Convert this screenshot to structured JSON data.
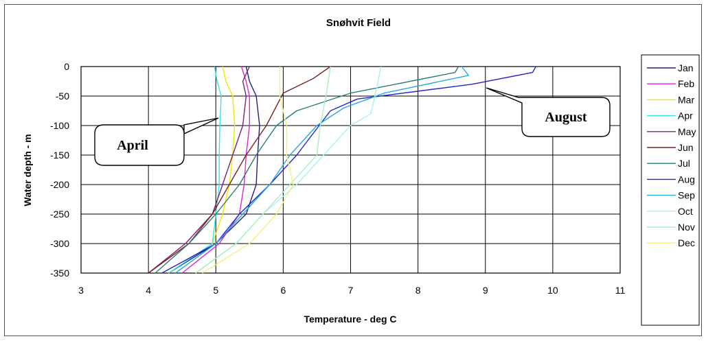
{
  "chart_data": {
    "type": "line",
    "title": "Snøhvit Field",
    "xlabel": "Temperature - deg C",
    "ylabel": "Water depth - m",
    "xlim": [
      3,
      11
    ],
    "ylim": [
      -350,
      0
    ],
    "x_ticks": [
      "3",
      "4",
      "5",
      "6",
      "7",
      "8",
      "9",
      "10",
      "11"
    ],
    "y_ticks": [
      "0",
      "-50",
      "-100",
      "-150",
      "-200",
      "-250",
      "-300",
      "-350"
    ],
    "grid": true,
    "legend_position": "right",
    "series": [
      {
        "name": "Jan",
        "color": "#1f1f7a",
        "points": [
          [
            5.45,
            0
          ],
          [
            5.5,
            -25
          ],
          [
            5.6,
            -50
          ],
          [
            5.65,
            -100
          ],
          [
            5.62,
            -150
          ],
          [
            5.6,
            -200
          ],
          [
            5.45,
            -250
          ],
          [
            5.0,
            -300
          ],
          [
            4.3,
            -350
          ]
        ]
      },
      {
        "name": "Feb",
        "color": "#e020e0",
        "points": [
          [
            5.38,
            0
          ],
          [
            5.45,
            -25
          ],
          [
            5.5,
            -50
          ],
          [
            5.5,
            -100
          ],
          [
            5.45,
            -150
          ],
          [
            5.42,
            -200
          ],
          [
            5.35,
            -250
          ],
          [
            5.05,
            -300
          ],
          [
            4.5,
            -350
          ]
        ]
      },
      {
        "name": "Mar",
        "color": "#f2e600",
        "points": [
          [
            5.1,
            0
          ],
          [
            5.15,
            -25
          ],
          [
            5.25,
            -50
          ],
          [
            5.28,
            -100
          ],
          [
            5.25,
            -150
          ],
          [
            5.2,
            -200
          ],
          [
            5.1,
            -250
          ],
          [
            4.95,
            -300
          ],
          [
            4.3,
            -350
          ]
        ]
      },
      {
        "name": "Apr",
        "color": "#33e6e6",
        "points": [
          [
            4.98,
            0
          ],
          [
            5.02,
            -25
          ],
          [
            5.08,
            -50
          ],
          [
            5.06,
            -100
          ],
          [
            5.05,
            -150
          ],
          [
            5.05,
            -200
          ],
          [
            5.0,
            -250
          ],
          [
            4.95,
            -300
          ],
          [
            4.3,
            -350
          ]
        ]
      },
      {
        "name": "May",
        "color": "#7a1f7a",
        "points": [
          [
            5.5,
            0
          ],
          [
            5.4,
            -25
          ],
          [
            5.45,
            -50
          ],
          [
            5.4,
            -100
          ],
          [
            5.25,
            -150
          ],
          [
            5.1,
            -200
          ],
          [
            4.95,
            -250
          ],
          [
            4.55,
            -300
          ],
          [
            4.0,
            -350
          ]
        ]
      },
      {
        "name": "Jun",
        "color": "#7a2020",
        "points": [
          [
            6.7,
            0
          ],
          [
            6.45,
            -20
          ],
          [
            6.0,
            -45
          ],
          [
            5.75,
            -100
          ],
          [
            5.45,
            -150
          ],
          [
            5.2,
            -200
          ],
          [
            4.95,
            -250
          ],
          [
            4.6,
            -300
          ],
          [
            4.0,
            -350
          ]
        ]
      },
      {
        "name": "Jul",
        "color": "#2b7a7a",
        "points": [
          [
            8.6,
            0
          ],
          [
            8.55,
            -10
          ],
          [
            7.0,
            -45
          ],
          [
            6.2,
            -75
          ],
          [
            5.9,
            -100
          ],
          [
            5.6,
            -150
          ],
          [
            5.35,
            -200
          ],
          [
            5.0,
            -250
          ],
          [
            4.6,
            -300
          ],
          [
            4.1,
            -350
          ]
        ]
      },
      {
        "name": "Aug",
        "color": "#2222cc",
        "points": [
          [
            9.75,
            0
          ],
          [
            9.7,
            -10
          ],
          [
            8.8,
            -30
          ],
          [
            7.1,
            -55
          ],
          [
            6.7,
            -75
          ],
          [
            6.2,
            -150
          ],
          [
            5.8,
            -200
          ],
          [
            5.35,
            -250
          ],
          [
            5.0,
            -300
          ],
          [
            4.2,
            -350
          ]
        ]
      },
      {
        "name": "Sep",
        "color": "#22aadd",
        "points": [
          [
            8.65,
            0
          ],
          [
            8.75,
            -15
          ],
          [
            7.5,
            -45
          ],
          [
            6.9,
            -70
          ],
          [
            6.5,
            -100
          ],
          [
            6.1,
            -150
          ],
          [
            5.8,
            -200
          ],
          [
            5.4,
            -250
          ],
          [
            5.0,
            -300
          ],
          [
            4.4,
            -350
          ]
        ]
      },
      {
        "name": "Oct",
        "color": "#aaf0f0",
        "points": [
          [
            7.45,
            0
          ],
          [
            7.4,
            -30
          ],
          [
            7.3,
            -80
          ],
          [
            7.0,
            -100
          ],
          [
            6.6,
            -150
          ],
          [
            6.2,
            -200
          ],
          [
            5.7,
            -250
          ],
          [
            5.3,
            -300
          ],
          [
            4.7,
            -350
          ]
        ]
      },
      {
        "name": "Nov",
        "color": "#aaeec0",
        "points": [
          [
            6.7,
            0
          ],
          [
            6.65,
            -40
          ],
          [
            6.55,
            -100
          ],
          [
            6.5,
            -150
          ],
          [
            6.1,
            -200
          ],
          [
            5.7,
            -250
          ],
          [
            5.3,
            -300
          ],
          [
            4.7,
            -350
          ]
        ]
      },
      {
        "name": "Dec",
        "color": "#f5f07a",
        "points": [
          [
            5.95,
            0
          ],
          [
            5.95,
            -50
          ],
          [
            6.05,
            -100
          ],
          [
            6.05,
            -150
          ],
          [
            6.15,
            -200
          ],
          [
            5.9,
            -250
          ],
          [
            5.5,
            -300
          ],
          [
            4.8,
            -350
          ]
        ]
      }
    ],
    "annotations": [
      {
        "text": "April",
        "target_series": "Apr"
      },
      {
        "text": "August",
        "target_series": "Aug"
      }
    ]
  }
}
